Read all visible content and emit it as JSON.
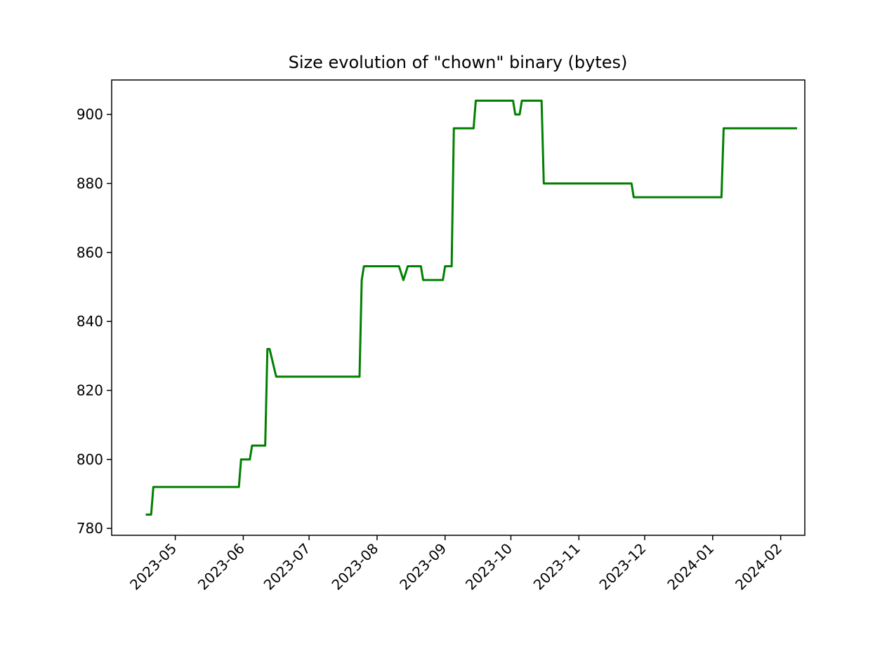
{
  "chart_data": {
    "type": "line",
    "title": "Size evolution of \"chown\" binary (bytes)",
    "xlabel": "",
    "ylabel": "",
    "xlim": [
      "2023-04-02",
      "2024-02-12"
    ],
    "ylim": [
      778,
      910
    ],
    "yticks": [
      780,
      800,
      820,
      840,
      860,
      880,
      900
    ],
    "xticks": [
      "2023-05-01",
      "2023-06-01",
      "2023-07-01",
      "2023-08-01",
      "2023-09-01",
      "2023-10-01",
      "2023-11-01",
      "2023-12-01",
      "2024-01-01",
      "2024-02-01"
    ],
    "xtick_labels": [
      "2023-05",
      "2023-06",
      "2023-07",
      "2023-08",
      "2023-09",
      "2023-10",
      "2023-11",
      "2023-12",
      "2024-01",
      "2024-02"
    ],
    "grid": false,
    "series": [
      {
        "color": "#008000",
        "points": [
          [
            "2023-04-18",
            784
          ],
          [
            "2023-04-20",
            784
          ],
          [
            "2023-04-21",
            792
          ],
          [
            "2023-05-30",
            792
          ],
          [
            "2023-05-31",
            800
          ],
          [
            "2023-06-04",
            800
          ],
          [
            "2023-06-05",
            804
          ],
          [
            "2023-06-11",
            804
          ],
          [
            "2023-06-12",
            832
          ],
          [
            "2023-06-13",
            832
          ],
          [
            "2023-06-16",
            824
          ],
          [
            "2023-07-24",
            824
          ],
          [
            "2023-07-25",
            852
          ],
          [
            "2023-07-26",
            856
          ],
          [
            "2023-08-11",
            856
          ],
          [
            "2023-08-13",
            852
          ],
          [
            "2023-08-15",
            856
          ],
          [
            "2023-08-21",
            856
          ],
          [
            "2023-08-22",
            852
          ],
          [
            "2023-08-31",
            852
          ],
          [
            "2023-09-01",
            856
          ],
          [
            "2023-09-04",
            856
          ],
          [
            "2023-09-05",
            896
          ],
          [
            "2023-09-14",
            896
          ],
          [
            "2023-09-15",
            904
          ],
          [
            "2023-10-02",
            904
          ],
          [
            "2023-10-03",
            900
          ],
          [
            "2023-10-05",
            900
          ],
          [
            "2023-10-06",
            904
          ],
          [
            "2023-10-15",
            904
          ],
          [
            "2023-10-16",
            880
          ],
          [
            "2023-11-25",
            880
          ],
          [
            "2023-11-26",
            876
          ],
          [
            "2024-01-05",
            876
          ],
          [
            "2024-01-06",
            896
          ],
          [
            "2024-02-08",
            896
          ]
        ]
      }
    ]
  }
}
